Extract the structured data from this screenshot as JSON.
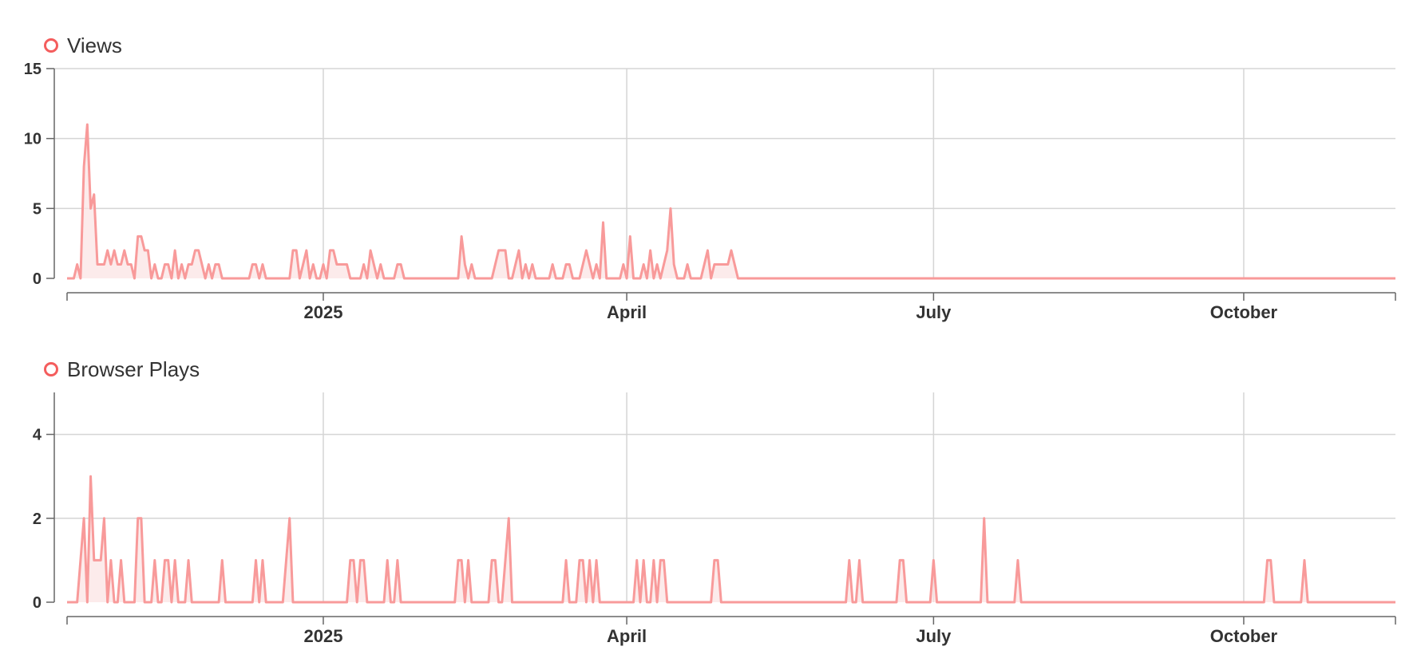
{
  "colors": {
    "series": "#f89a9a",
    "fill": "#fbe2e2",
    "marker": "#f45d5d",
    "grid": "#d5d5d5",
    "axis": "#666666",
    "text": "#333333"
  },
  "chart_data": [
    {
      "type": "area",
      "legend": "Views",
      "legend_position": "top-left",
      "grid": true,
      "x_start": "2024-10-17",
      "x_end": "2025-11-15",
      "ylim": [
        0,
        15
      ],
      "y_ticks": [
        0,
        5,
        10,
        15
      ],
      "x_ticks": [
        {
          "date": "2025-01-01",
          "label": "2025"
        },
        {
          "date": "2025-04-01",
          "label": "April"
        },
        {
          "date": "2025-07-01",
          "label": "July"
        },
        {
          "date": "2025-10-01",
          "label": "October"
        }
      ],
      "points": [
        [
          "2024-10-20",
          1
        ],
        [
          "2024-10-21",
          0
        ],
        [
          "2024-10-22",
          8
        ],
        [
          "2024-10-23",
          11
        ],
        [
          "2024-10-24",
          5
        ],
        [
          "2024-10-25",
          6
        ],
        [
          "2024-10-26",
          1
        ],
        [
          "2024-10-27",
          1
        ],
        [
          "2024-10-28",
          1
        ],
        [
          "2024-10-29",
          2
        ],
        [
          "2024-10-30",
          1
        ],
        [
          "2024-10-31",
          2
        ],
        [
          "2024-11-01",
          1
        ],
        [
          "2024-11-02",
          1
        ],
        [
          "2024-11-03",
          2
        ],
        [
          "2024-11-04",
          1
        ],
        [
          "2024-11-05",
          1
        ],
        [
          "2024-11-06",
          0
        ],
        [
          "2024-11-07",
          3
        ],
        [
          "2024-11-08",
          3
        ],
        [
          "2024-11-09",
          2
        ],
        [
          "2024-11-10",
          2
        ],
        [
          "2024-11-11",
          0
        ],
        [
          "2024-11-12",
          1
        ],
        [
          "2024-11-13",
          0
        ],
        [
          "2024-11-14",
          0
        ],
        [
          "2024-11-15",
          1
        ],
        [
          "2024-11-16",
          1
        ],
        [
          "2024-11-17",
          0
        ],
        [
          "2024-11-18",
          2
        ],
        [
          "2024-11-19",
          0
        ],
        [
          "2024-11-20",
          1
        ],
        [
          "2024-11-21",
          0
        ],
        [
          "2024-11-22",
          1
        ],
        [
          "2024-11-23",
          1
        ],
        [
          "2024-11-24",
          2
        ],
        [
          "2024-11-25",
          2
        ],
        [
          "2024-11-26",
          1
        ],
        [
          "2024-11-27",
          0
        ],
        [
          "2024-11-28",
          1
        ],
        [
          "2024-11-29",
          0
        ],
        [
          "2024-11-30",
          1
        ],
        [
          "2024-12-01",
          1
        ],
        [
          "2024-12-02",
          0
        ],
        [
          "2024-12-10",
          0
        ],
        [
          "2024-12-11",
          1
        ],
        [
          "2024-12-12",
          1
        ],
        [
          "2024-12-13",
          0
        ],
        [
          "2024-12-14",
          1
        ],
        [
          "2024-12-15",
          0
        ],
        [
          "2024-12-22",
          0
        ],
        [
          "2024-12-23",
          2
        ],
        [
          "2024-12-24",
          2
        ],
        [
          "2024-12-25",
          0
        ],
        [
          "2024-12-26",
          1
        ],
        [
          "2024-12-27",
          2
        ],
        [
          "2024-12-28",
          0
        ],
        [
          "2024-12-29",
          1
        ],
        [
          "2024-12-30",
          0
        ],
        [
          "2024-12-31",
          0
        ],
        [
          "2025-01-01",
          1
        ],
        [
          "2025-01-02",
          0
        ],
        [
          "2025-01-03",
          2
        ],
        [
          "2025-01-04",
          2
        ],
        [
          "2025-01-05",
          1
        ],
        [
          "2025-01-06",
          1
        ],
        [
          "2025-01-07",
          1
        ],
        [
          "2025-01-08",
          1
        ],
        [
          "2025-01-09",
          0
        ],
        [
          "2025-01-12",
          0
        ],
        [
          "2025-01-13",
          1
        ],
        [
          "2025-01-14",
          0
        ],
        [
          "2025-01-15",
          2
        ],
        [
          "2025-01-16",
          1
        ],
        [
          "2025-01-17",
          0
        ],
        [
          "2025-01-18",
          1
        ],
        [
          "2025-01-19",
          0
        ],
        [
          "2025-01-22",
          0
        ],
        [
          "2025-01-23",
          1
        ],
        [
          "2025-01-24",
          1
        ],
        [
          "2025-01-25",
          0
        ],
        [
          "2025-02-10",
          0
        ],
        [
          "2025-02-11",
          3
        ],
        [
          "2025-02-12",
          1
        ],
        [
          "2025-02-13",
          0
        ],
        [
          "2025-02-14",
          1
        ],
        [
          "2025-02-15",
          0
        ],
        [
          "2025-02-20",
          0
        ],
        [
          "2025-02-21",
          1
        ],
        [
          "2025-02-22",
          2
        ],
        [
          "2025-02-23",
          2
        ],
        [
          "2025-02-24",
          2
        ],
        [
          "2025-02-25",
          0
        ],
        [
          "2025-02-27",
          1
        ],
        [
          "2025-02-28",
          2
        ],
        [
          "2025-03-01",
          0
        ],
        [
          "2025-03-02",
          1
        ],
        [
          "2025-03-03",
          0
        ],
        [
          "2025-03-04",
          1
        ],
        [
          "2025-03-05",
          0
        ],
        [
          "2025-03-09",
          0
        ],
        [
          "2025-03-10",
          1
        ],
        [
          "2025-03-11",
          0
        ],
        [
          "2025-03-13",
          0
        ],
        [
          "2025-03-14",
          1
        ],
        [
          "2025-03-15",
          1
        ],
        [
          "2025-03-16",
          0
        ],
        [
          "2025-03-18",
          0
        ],
        [
          "2025-03-19",
          1
        ],
        [
          "2025-03-20",
          2
        ],
        [
          "2025-03-21",
          1
        ],
        [
          "2025-03-22",
          0
        ],
        [
          "2025-03-23",
          1
        ],
        [
          "2025-03-24",
          0
        ],
        [
          "2025-03-25",
          4
        ],
        [
          "2025-03-26",
          0
        ],
        [
          "2025-03-30",
          0
        ],
        [
          "2025-03-31",
          1
        ],
        [
          "2025-04-01",
          0
        ],
        [
          "2025-04-02",
          3
        ],
        [
          "2025-04-03",
          0
        ],
        [
          "2025-04-05",
          0
        ],
        [
          "2025-04-06",
          1
        ],
        [
          "2025-04-07",
          0
        ],
        [
          "2025-04-08",
          2
        ],
        [
          "2025-04-09",
          0
        ],
        [
          "2025-04-10",
          1
        ],
        [
          "2025-04-11",
          0
        ],
        [
          "2025-04-12",
          1
        ],
        [
          "2025-04-13",
          2
        ],
        [
          "2025-04-14",
          5
        ],
        [
          "2025-04-15",
          1
        ],
        [
          "2025-04-16",
          0
        ],
        [
          "2025-04-18",
          0
        ],
        [
          "2025-04-19",
          1
        ],
        [
          "2025-04-20",
          0
        ],
        [
          "2025-04-23",
          0
        ],
        [
          "2025-04-24",
          1
        ],
        [
          "2025-04-25",
          2
        ],
        [
          "2025-04-26",
          0
        ],
        [
          "2025-04-27",
          1
        ],
        [
          "2025-04-28",
          1
        ],
        [
          "2025-04-29",
          1
        ],
        [
          "2025-04-30",
          1
        ],
        [
          "2025-05-01",
          1
        ],
        [
          "2025-05-02",
          2
        ],
        [
          "2025-05-03",
          1
        ],
        [
          "2025-05-04",
          0
        ]
      ]
    },
    {
      "type": "area",
      "legend": "Browser Plays",
      "legend_position": "top-left",
      "grid": true,
      "x_start": "2024-10-17",
      "x_end": "2025-11-15",
      "ylim": [
        0,
        5
      ],
      "y_ticks": [
        0,
        2,
        4
      ],
      "x_ticks": [
        {
          "date": "2025-01-01",
          "label": "2025"
        },
        {
          "date": "2025-04-01",
          "label": "April"
        },
        {
          "date": "2025-07-01",
          "label": "July"
        },
        {
          "date": "2025-10-01",
          "label": "October"
        }
      ],
      "points": [
        [
          "2024-10-20",
          0
        ],
        [
          "2024-10-21",
          1
        ],
        [
          "2024-10-22",
          2
        ],
        [
          "2024-10-23",
          0
        ],
        [
          "2024-10-24",
          3
        ],
        [
          "2024-10-25",
          1
        ],
        [
          "2024-10-26",
          1
        ],
        [
          "2024-10-27",
          1
        ],
        [
          "2024-10-28",
          2
        ],
        [
          "2024-10-29",
          0
        ],
        [
          "2024-10-30",
          1
        ],
        [
          "2024-10-31",
          0
        ],
        [
          "2024-11-02",
          1
        ],
        [
          "2024-11-03",
          0
        ],
        [
          "2024-11-06",
          0
        ],
        [
          "2024-11-07",
          2
        ],
        [
          "2024-11-08",
          2
        ],
        [
          "2024-11-09",
          0
        ],
        [
          "2024-11-11",
          0
        ],
        [
          "2024-11-12",
          1
        ],
        [
          "2024-11-13",
          0
        ],
        [
          "2024-11-14",
          0
        ],
        [
          "2024-11-15",
          1
        ],
        [
          "2024-11-16",
          1
        ],
        [
          "2024-11-17",
          0
        ],
        [
          "2024-11-18",
          1
        ],
        [
          "2024-11-19",
          0
        ],
        [
          "2024-11-21",
          0
        ],
        [
          "2024-11-22",
          1
        ],
        [
          "2024-11-23",
          0
        ],
        [
          "2024-12-01",
          0
        ],
        [
          "2024-12-02",
          1
        ],
        [
          "2024-12-03",
          0
        ],
        [
          "2024-12-11",
          0
        ],
        [
          "2024-12-12",
          1
        ],
        [
          "2024-12-13",
          0
        ],
        [
          "2024-12-14",
          1
        ],
        [
          "2024-12-15",
          0
        ],
        [
          "2024-12-20",
          0
        ],
        [
          "2024-12-21",
          1
        ],
        [
          "2024-12-22",
          2
        ],
        [
          "2024-12-23",
          0
        ],
        [
          "2025-01-08",
          0
        ],
        [
          "2025-01-09",
          1
        ],
        [
          "2025-01-10",
          1
        ],
        [
          "2025-01-11",
          0
        ],
        [
          "2025-01-12",
          1
        ],
        [
          "2025-01-13",
          1
        ],
        [
          "2025-01-14",
          0
        ],
        [
          "2025-01-19",
          0
        ],
        [
          "2025-01-20",
          1
        ],
        [
          "2025-01-21",
          0
        ],
        [
          "2025-01-22",
          0
        ],
        [
          "2025-01-23",
          1
        ],
        [
          "2025-01-24",
          0
        ],
        [
          "2025-02-09",
          0
        ],
        [
          "2025-02-10",
          1
        ],
        [
          "2025-02-11",
          1
        ],
        [
          "2025-02-12",
          0
        ],
        [
          "2025-02-13",
          1
        ],
        [
          "2025-02-14",
          0
        ],
        [
          "2025-02-19",
          0
        ],
        [
          "2025-02-20",
          1
        ],
        [
          "2025-02-21",
          1
        ],
        [
          "2025-02-22",
          0
        ],
        [
          "2025-02-24",
          1
        ],
        [
          "2025-02-25",
          2
        ],
        [
          "2025-02-26",
          0
        ],
        [
          "2025-03-13",
          0
        ],
        [
          "2025-03-14",
          1
        ],
        [
          "2025-03-15",
          0
        ],
        [
          "2025-03-17",
          0
        ],
        [
          "2025-03-18",
          1
        ],
        [
          "2025-03-19",
          1
        ],
        [
          "2025-03-20",
          0
        ],
        [
          "2025-03-21",
          1
        ],
        [
          "2025-03-22",
          0
        ],
        [
          "2025-03-23",
          1
        ],
        [
          "2025-03-24",
          0
        ],
        [
          "2025-04-03",
          0
        ],
        [
          "2025-04-04",
          1
        ],
        [
          "2025-04-05",
          0
        ],
        [
          "2025-04-06",
          1
        ],
        [
          "2025-04-07",
          0
        ],
        [
          "2025-04-08",
          0
        ],
        [
          "2025-04-09",
          1
        ],
        [
          "2025-04-10",
          0
        ],
        [
          "2025-04-11",
          1
        ],
        [
          "2025-04-12",
          1
        ],
        [
          "2025-04-13",
          0
        ],
        [
          "2025-04-26",
          0
        ],
        [
          "2025-04-27",
          1
        ],
        [
          "2025-04-28",
          1
        ],
        [
          "2025-04-29",
          0
        ],
        [
          "2025-06-05",
          0
        ],
        [
          "2025-06-06",
          1
        ],
        [
          "2025-06-07",
          0
        ],
        [
          "2025-06-08",
          0
        ],
        [
          "2025-06-09",
          1
        ],
        [
          "2025-06-10",
          0
        ],
        [
          "2025-06-20",
          0
        ],
        [
          "2025-06-21",
          1
        ],
        [
          "2025-06-22",
          1
        ],
        [
          "2025-06-23",
          0
        ],
        [
          "2025-06-30",
          0
        ],
        [
          "2025-07-01",
          1
        ],
        [
          "2025-07-02",
          0
        ],
        [
          "2025-07-15",
          0
        ],
        [
          "2025-07-16",
          2
        ],
        [
          "2025-07-17",
          0
        ],
        [
          "2025-07-25",
          0
        ],
        [
          "2025-07-26",
          1
        ],
        [
          "2025-07-27",
          0
        ],
        [
          "2025-10-07",
          0
        ],
        [
          "2025-10-08",
          1
        ],
        [
          "2025-10-09",
          1
        ],
        [
          "2025-10-10",
          0
        ],
        [
          "2025-10-18",
          0
        ],
        [
          "2025-10-19",
          1
        ],
        [
          "2025-10-20",
          0
        ]
      ]
    }
  ]
}
